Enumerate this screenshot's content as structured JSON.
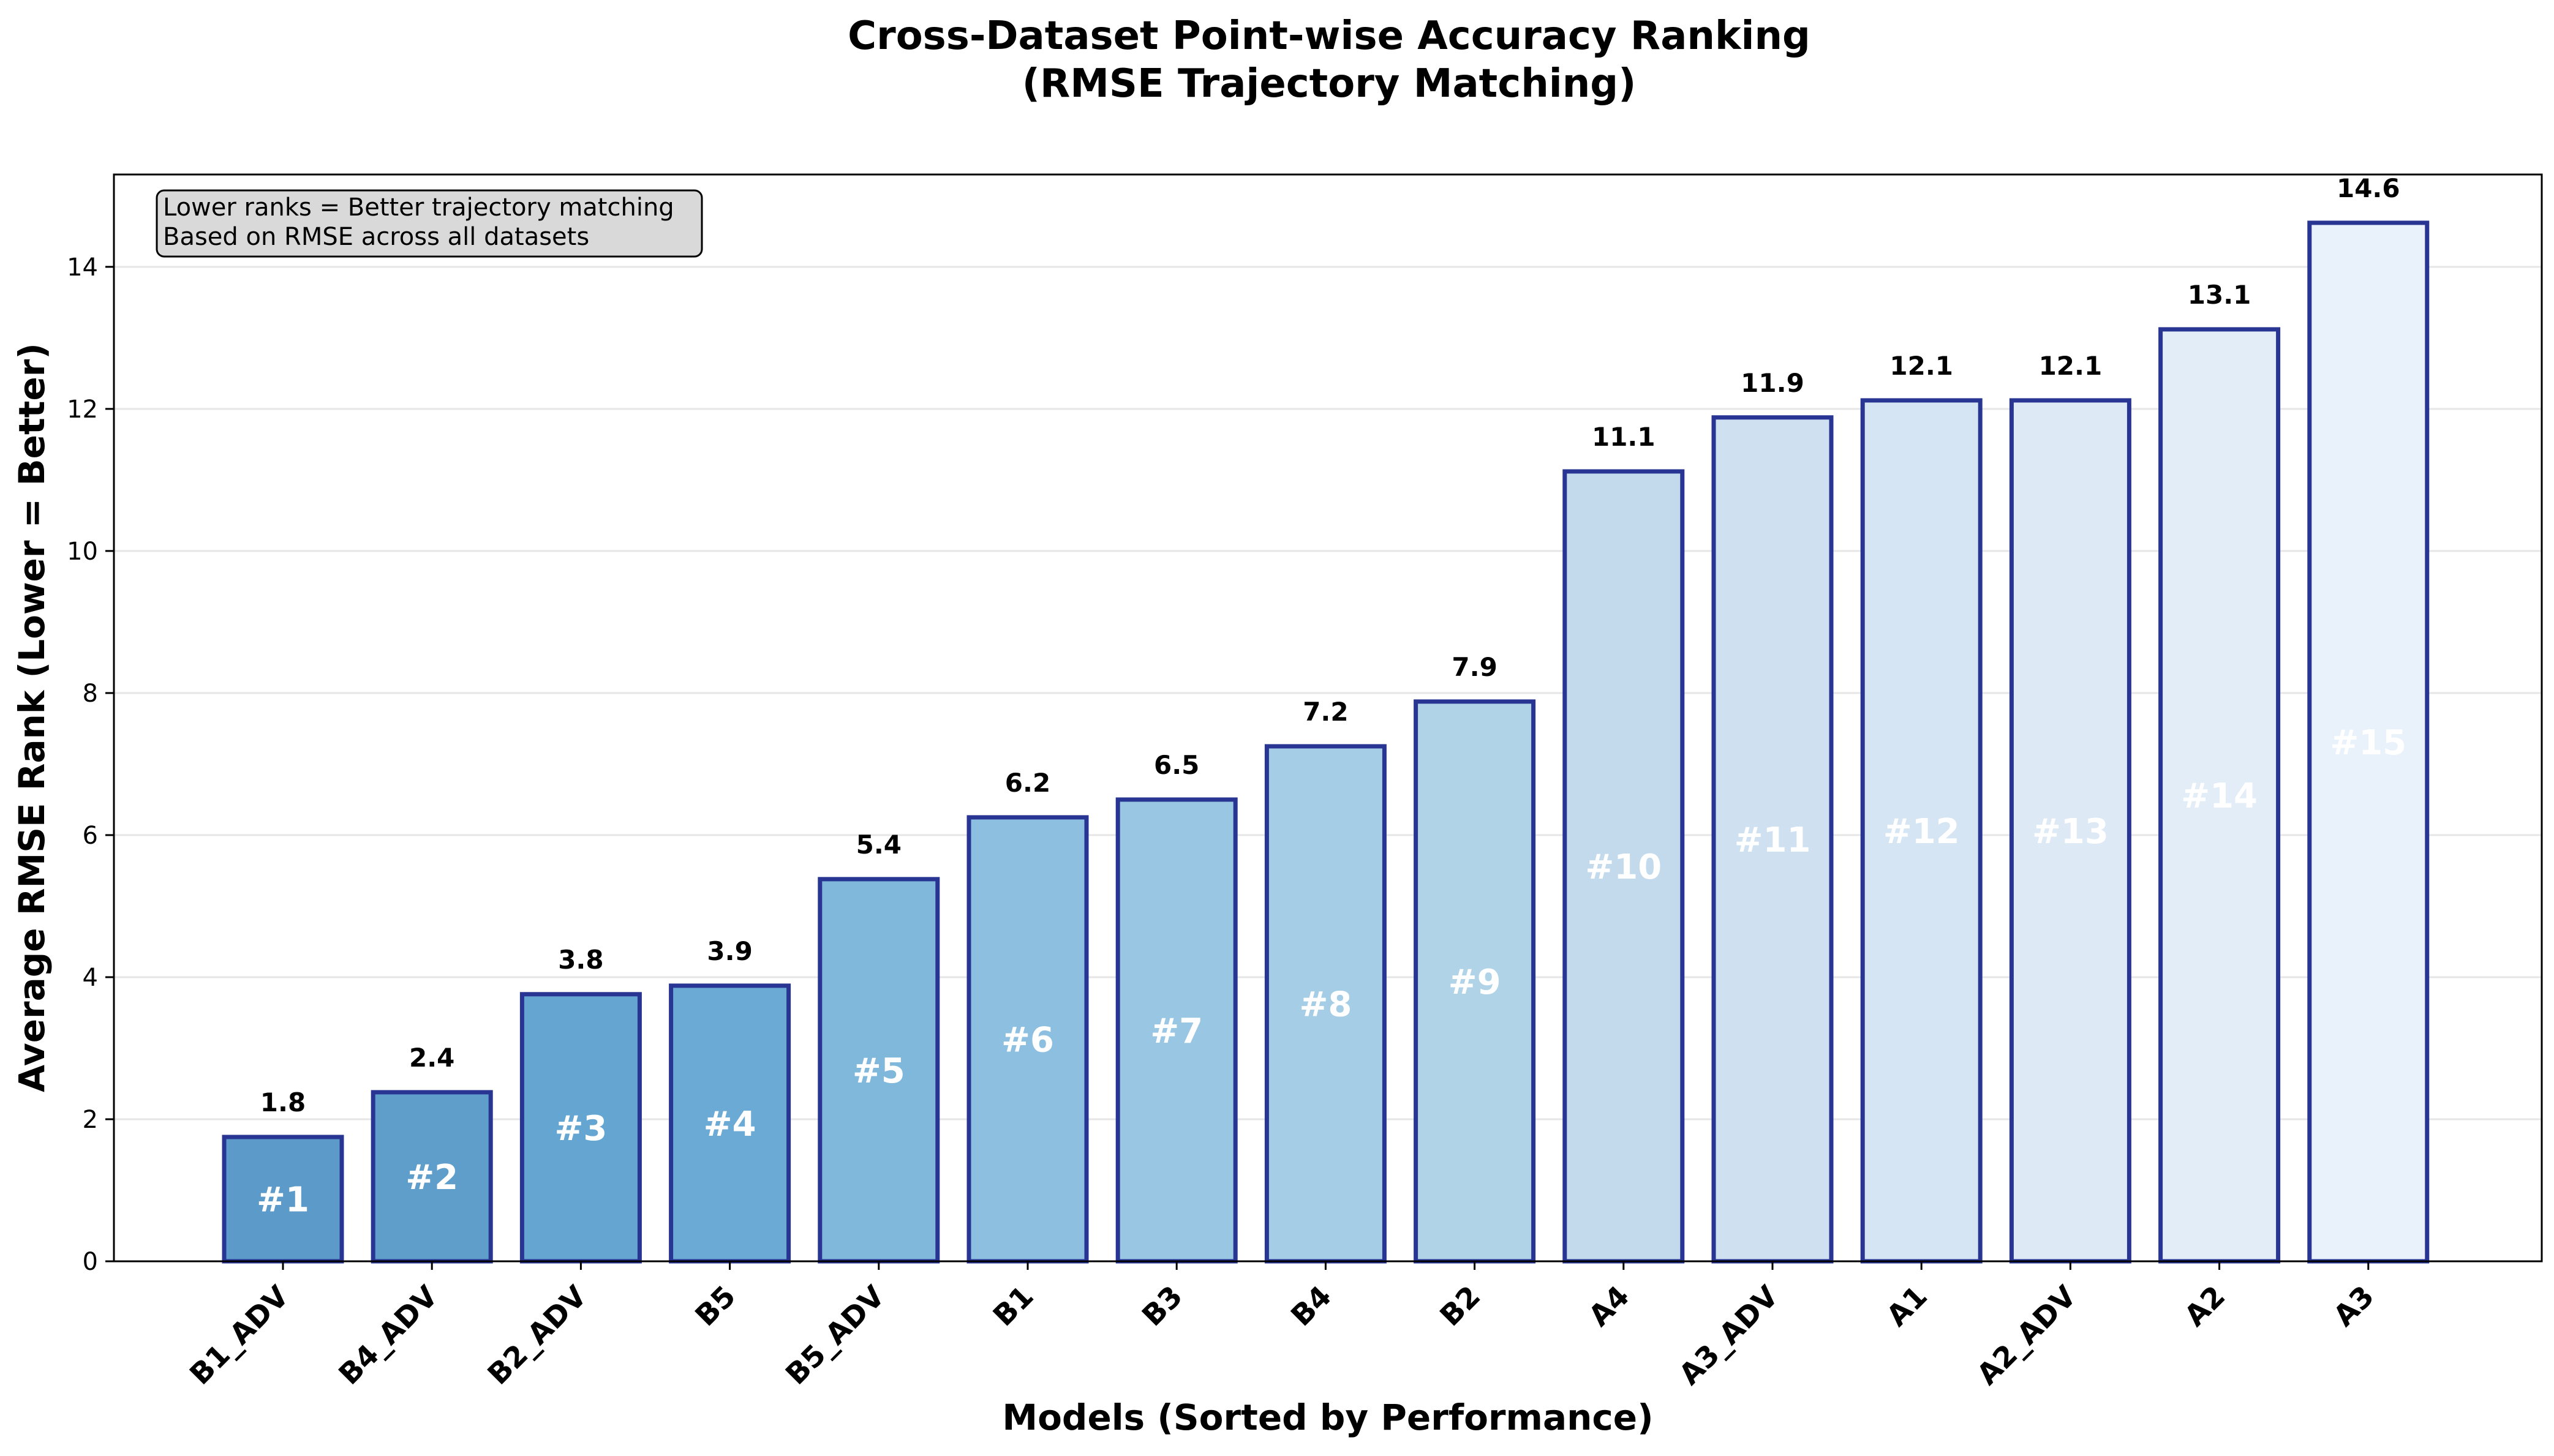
{
  "chart_data": {
    "type": "bar",
    "title": "Cross-Dataset Point-wise Accuracy Ranking",
    "subtitle": "(RMSE Trajectory Matching)",
    "xlabel": "Models (Sorted by Performance)",
    "ylabel": "Average RMSE Rank (Lower = Better)",
    "ylim": [
      0,
      15.3
    ],
    "yticks": [
      0,
      2,
      4,
      6,
      8,
      10,
      12,
      14
    ],
    "grid": "y",
    "categories": [
      "B1_ADV",
      "B4_ADV",
      "B2_ADV",
      "B5",
      "B5_ADV",
      "B1",
      "B3",
      "B4",
      "B2",
      "A4",
      "A3_ADV",
      "A1",
      "A2_ADV",
      "A2",
      "A3"
    ],
    "values": [
      1.75,
      2.38,
      3.76,
      3.88,
      5.38,
      6.25,
      6.5,
      7.25,
      7.88,
      11.12,
      11.88,
      12.12,
      12.12,
      13.12,
      14.62
    ],
    "value_labels": [
      "1.8",
      "2.4",
      "3.8",
      "3.9",
      "5.4",
      "6.2",
      "6.5",
      "7.2",
      "7.9",
      "11.1",
      "11.9",
      "12.1",
      "12.1",
      "13.1",
      "14.6"
    ],
    "rank_labels": [
      "#1",
      "#2",
      "#3",
      "#4",
      "#5",
      "#6",
      "#7",
      "#8",
      "#9",
      "#10",
      "#11",
      "#12",
      "#13",
      "#14",
      "#15"
    ],
    "bar_colors": [
      "#5b9ac9",
      "#5f9dcb",
      "#65a5d1",
      "#6aaad4",
      "#80b8dc",
      "#8dc0e0",
      "#98c6e3",
      "#a5cde5",
      "#b0d3e8",
      "#c3daed",
      "#cfe0f1",
      "#d6e5f3",
      "#dde9f5",
      "#e3edf7",
      "#e9f1fa"
    ],
    "edge_color": "#283593",
    "annotation": {
      "lines": [
        "Lower ranks = Better trajectory matching",
        "Based on RMSE across all datasets"
      ],
      "placement": "top-left"
    }
  }
}
